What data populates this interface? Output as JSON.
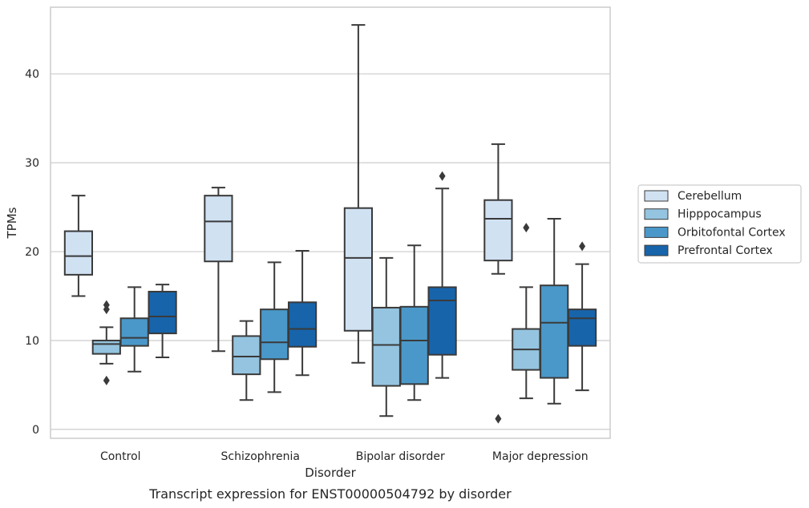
{
  "chart_data": {
    "type": "boxplot",
    "caption": "Transcript expression for ENST00000504792 by disorder",
    "xlabel": "Disorder",
    "ylabel": "TPMs",
    "ylim": [
      -1,
      47.5
    ],
    "yticks": [
      0,
      10,
      20,
      30,
      40
    ],
    "grid": true,
    "legend_position": "right",
    "categories": [
      "Control",
      "Schizophrenia",
      "Bipolar disorder",
      "Major depression"
    ],
    "series": [
      {
        "name": "Cerebellum",
        "color": "#d0e1f2",
        "boxes": [
          {
            "whisker_low": 15.0,
            "q1": 17.4,
            "median": 19.5,
            "q3": 22.3,
            "whisker_high": 26.3,
            "outliers": []
          },
          {
            "whisker_low": 8.8,
            "q1": 18.9,
            "median": 23.4,
            "q3": 26.3,
            "whisker_high": 27.2,
            "outliers": []
          },
          {
            "whisker_low": 7.5,
            "q1": 11.1,
            "median": 19.3,
            "q3": 24.9,
            "whisker_high": 45.5,
            "outliers": []
          },
          {
            "whisker_low": 17.5,
            "q1": 19.0,
            "median": 23.7,
            "q3": 25.8,
            "whisker_high": 32.1,
            "outliers": [
              1.2
            ]
          }
        ]
      },
      {
        "name": "Hipppocampus",
        "color": "#94c4df",
        "boxes": [
          {
            "whisker_low": 7.4,
            "q1": 8.5,
            "median": 9.6,
            "q3": 10.0,
            "whisker_high": 11.5,
            "outliers": [
              5.5,
              13.5,
              14.0
            ]
          },
          {
            "whisker_low": 3.3,
            "q1": 6.2,
            "median": 8.2,
            "q3": 10.5,
            "whisker_high": 12.2,
            "outliers": []
          },
          {
            "whisker_low": 1.5,
            "q1": 4.9,
            "median": 9.5,
            "q3": 13.7,
            "whisker_high": 19.3,
            "outliers": []
          },
          {
            "whisker_low": 3.5,
            "q1": 6.7,
            "median": 9.0,
            "q3": 11.3,
            "whisker_high": 16.0,
            "outliers": [
              22.7
            ]
          }
        ]
      },
      {
        "name": "Orbitofontal Cortex",
        "color": "#4a98c9",
        "boxes": [
          {
            "whisker_low": 6.5,
            "q1": 9.4,
            "median": 10.3,
            "q3": 12.5,
            "whisker_high": 16.0,
            "outliers": []
          },
          {
            "whisker_low": 4.2,
            "q1": 7.9,
            "median": 9.8,
            "q3": 13.5,
            "whisker_high": 18.8,
            "outliers": []
          },
          {
            "whisker_low": 3.3,
            "q1": 5.1,
            "median": 10.0,
            "q3": 13.8,
            "whisker_high": 20.7,
            "outliers": []
          },
          {
            "whisker_low": 2.9,
            "q1": 5.8,
            "median": 12.0,
            "q3": 16.2,
            "whisker_high": 23.7,
            "outliers": []
          }
        ]
      },
      {
        "name": "Prefrontal Cortex",
        "color": "#1764ab",
        "boxes": [
          {
            "whisker_low": 8.1,
            "q1": 10.8,
            "median": 12.7,
            "q3": 15.5,
            "whisker_high": 16.3,
            "outliers": []
          },
          {
            "whisker_low": 6.1,
            "q1": 9.3,
            "median": 11.3,
            "q3": 14.3,
            "whisker_high": 20.1,
            "outliers": []
          },
          {
            "whisker_low": 5.8,
            "q1": 8.4,
            "median": 14.5,
            "q3": 16.0,
            "whisker_high": 27.1,
            "outliers": [
              28.5
            ]
          },
          {
            "whisker_low": 4.4,
            "q1": 9.4,
            "median": 12.5,
            "q3": 13.5,
            "whisker_high": 18.6,
            "outliers": [
              20.6
            ]
          }
        ]
      }
    ],
    "style": {
      "grid_color": "#cccccc",
      "frame_color": "#cccccc",
      "line_color": "#3a3a3a"
    }
  }
}
